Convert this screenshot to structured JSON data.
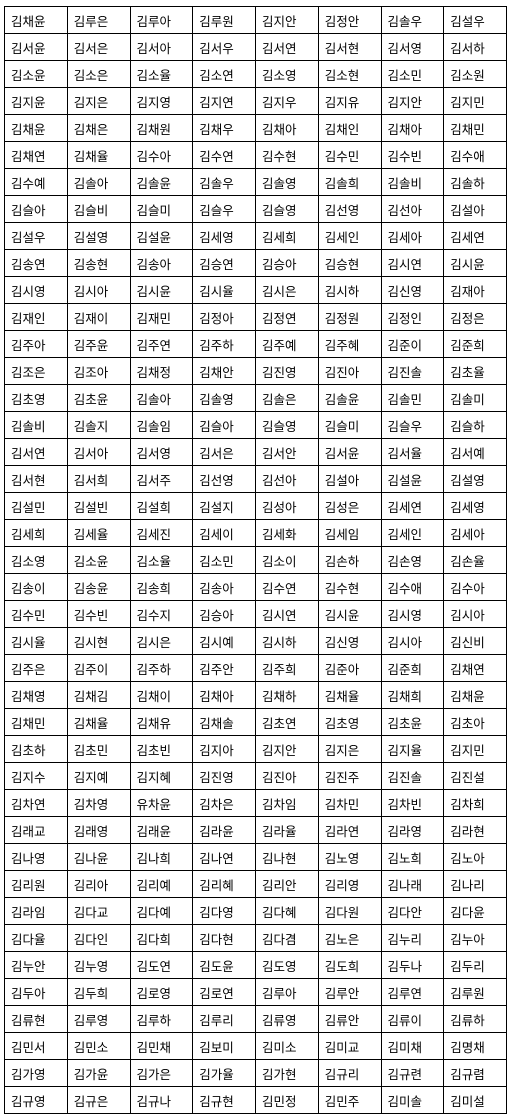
{
  "name_table": {
    "rows": [
      [
        "김채윤",
        "김루은",
        "김루아",
        "김루원",
        "김지안",
        "김정안",
        "김솔우",
        "김설우"
      ],
      [
        "김서윤",
        "김서은",
        "김서아",
        "김서우",
        "김서연",
        "김서현",
        "김서영",
        "김서하"
      ],
      [
        "김소윤",
        "김소은",
        "김소율",
        "김소연",
        "김소영",
        "김소현",
        "김소민",
        "김소원"
      ],
      [
        "김지윤",
        "김지은",
        "김지영",
        "김지연",
        "김지우",
        "김지유",
        "김지안",
        "김지민"
      ],
      [
        "김채윤",
        "김채은",
        "김채원",
        "김채우",
        "김채아",
        "김채인",
        "김채아",
        "김채민"
      ],
      [
        "김채연",
        "김채율",
        "김수아",
        "김수연",
        "김수현",
        "김수민",
        "김수빈",
        "김수애"
      ],
      [
        "김수예",
        "김솔아",
        "김솔윤",
        "김솔우",
        "김솔영",
        "김솔희",
        "김솔비",
        "김솔하"
      ],
      [
        "김슬아",
        "김슬비",
        "김슬미",
        "김슬우",
        "김슬영",
        "김선영",
        "김선아",
        "김설아"
      ],
      [
        "김설우",
        "김설영",
        "김설윤",
        "김세영",
        "김세희",
        "김세인",
        "김세아",
        "김세연"
      ],
      [
        "김송연",
        "김송현",
        "김송아",
        "김승연",
        "김승아",
        "김승현",
        "김시연",
        "김시윤"
      ],
      [
        "김시영",
        "김시아",
        "김시윤",
        "김시율",
        "김시은",
        "김시하",
        "김신영",
        "김재아"
      ],
      [
        "김재인",
        "김재이",
        "김재민",
        "김정아",
        "김정연",
        "김정원",
        "김정인",
        "김정은"
      ],
      [
        "김주아",
        "김주윤",
        "김주연",
        "김주하",
        "김주예",
        "김주혜",
        "김준이",
        "김준희"
      ],
      [
        "김조은",
        "김조아",
        "김채정",
        "김채안",
        "김진영",
        "김진아",
        "김진솔",
        "김초율"
      ],
      [
        "김초영",
        "김초윤",
        "김솔아",
        "김솔영",
        "김솔은",
        "김솔윤",
        "김솔민",
        "김솔미"
      ],
      [
        "김솔비",
        "김솔지",
        "김솔임",
        "김슬아",
        "김슬영",
        "김슬미",
        "김슬우",
        "김슬하"
      ],
      [
        "김서연",
        "김서아",
        "김서영",
        "김서은",
        "김서안",
        "김서윤",
        "김서율",
        "김서예"
      ],
      [
        "김서현",
        "김서희",
        "김서주",
        "김선영",
        "김선아",
        "김설아",
        "김설윤",
        "김설영"
      ],
      [
        "김설민",
        "김설빈",
        "김설희",
        "김설지",
        "김성아",
        "김성은",
        "김세연",
        "김세영"
      ],
      [
        "김세희",
        "김세율",
        "김세진",
        "김세이",
        "김세화",
        "김세임",
        "김세인",
        "김세아"
      ],
      [
        "김소영",
        "김소윤",
        "김소율",
        "김소민",
        "김소이",
        "김손하",
        "김손영",
        "김손율"
      ],
      [
        "김송이",
        "김송윤",
        "김송희",
        "김송아",
        "김수연",
        "김수현",
        "김수애",
        "김수아"
      ],
      [
        "김수민",
        "김수빈",
        "김수지",
        "김승아",
        "김시연",
        "김시윤",
        "김시영",
        "김시아"
      ],
      [
        "김시율",
        "김시현",
        "김시은",
        "김시예",
        "김시하",
        "김신영",
        "김시아",
        "김신비"
      ],
      [
        "김주은",
        "김주이",
        "김주하",
        "김주안",
        "김주희",
        "김준아",
        "김준희",
        "김채연"
      ],
      [
        "김채영",
        "김채김",
        "김채이",
        "김채아",
        "김채하",
        "김채율",
        "김채희",
        "김채윤"
      ],
      [
        "김채민",
        "김채율",
        "김채유",
        "김채솔",
        "김초연",
        "김초영",
        "김초윤",
        "김초아"
      ],
      [
        "김초하",
        "김초민",
        "김초빈",
        "김지아",
        "김지안",
        "김지은",
        "김지율",
        "김지민"
      ],
      [
        "김지수",
        "김지예",
        "김지혜",
        "김진영",
        "김진아",
        "김진주",
        "김진솔",
        "김진설"
      ],
      [
        "김차연",
        "김차영",
        "유차윤",
        "김차은",
        "김차임",
        "김차민",
        "김차빈",
        "김차희"
      ],
      [
        "김래교",
        "김래영",
        "김래윤",
        "김라윤",
        "김라율",
        "김라연",
        "김라영",
        "김라현"
      ],
      [
        "김나영",
        "김나윤",
        "김나희",
        "김나연",
        "김나현",
        "김노영",
        "김노희",
        "김노아"
      ],
      [
        "김리원",
        "김리아",
        "김리예",
        "김리혜",
        "김리안",
        "김리영",
        "김나래",
        "김나리"
      ],
      [
        "김라임",
        "김다교",
        "김다예",
        "김다영",
        "김다혜",
        "김다원",
        "김다안",
        "김다윤"
      ],
      [
        "김다율",
        "김다인",
        "김다희",
        "김다현",
        "김다겸",
        "김노은",
        "김누리",
        "김누아"
      ],
      [
        "김누안",
        "김누영",
        "김도연",
        "김도윤",
        "김도영",
        "김도희",
        "김두나",
        "김두리"
      ],
      [
        "김두아",
        "김두희",
        "김로영",
        "김로연",
        "김루아",
        "김루안",
        "김루연",
        "김루원"
      ],
      [
        "김류현",
        "김루영",
        "김루하",
        "김루리",
        "김류영",
        "김류안",
        "김류이",
        "김류하"
      ],
      [
        "김민서",
        "김민소",
        "김민채",
        "김보미",
        "김미소",
        "김미교",
        "김미채",
        "김명채"
      ],
      [
        "김가영",
        "김가윤",
        "김가은",
        "김가율",
        "김가현",
        "김규리",
        "김규련",
        "김규렴"
      ],
      [
        "김규영",
        "김규은",
        "김규나",
        "김규현",
        "김민정",
        "김민주",
        "김미솔",
        "김미설"
      ]
    ]
  }
}
